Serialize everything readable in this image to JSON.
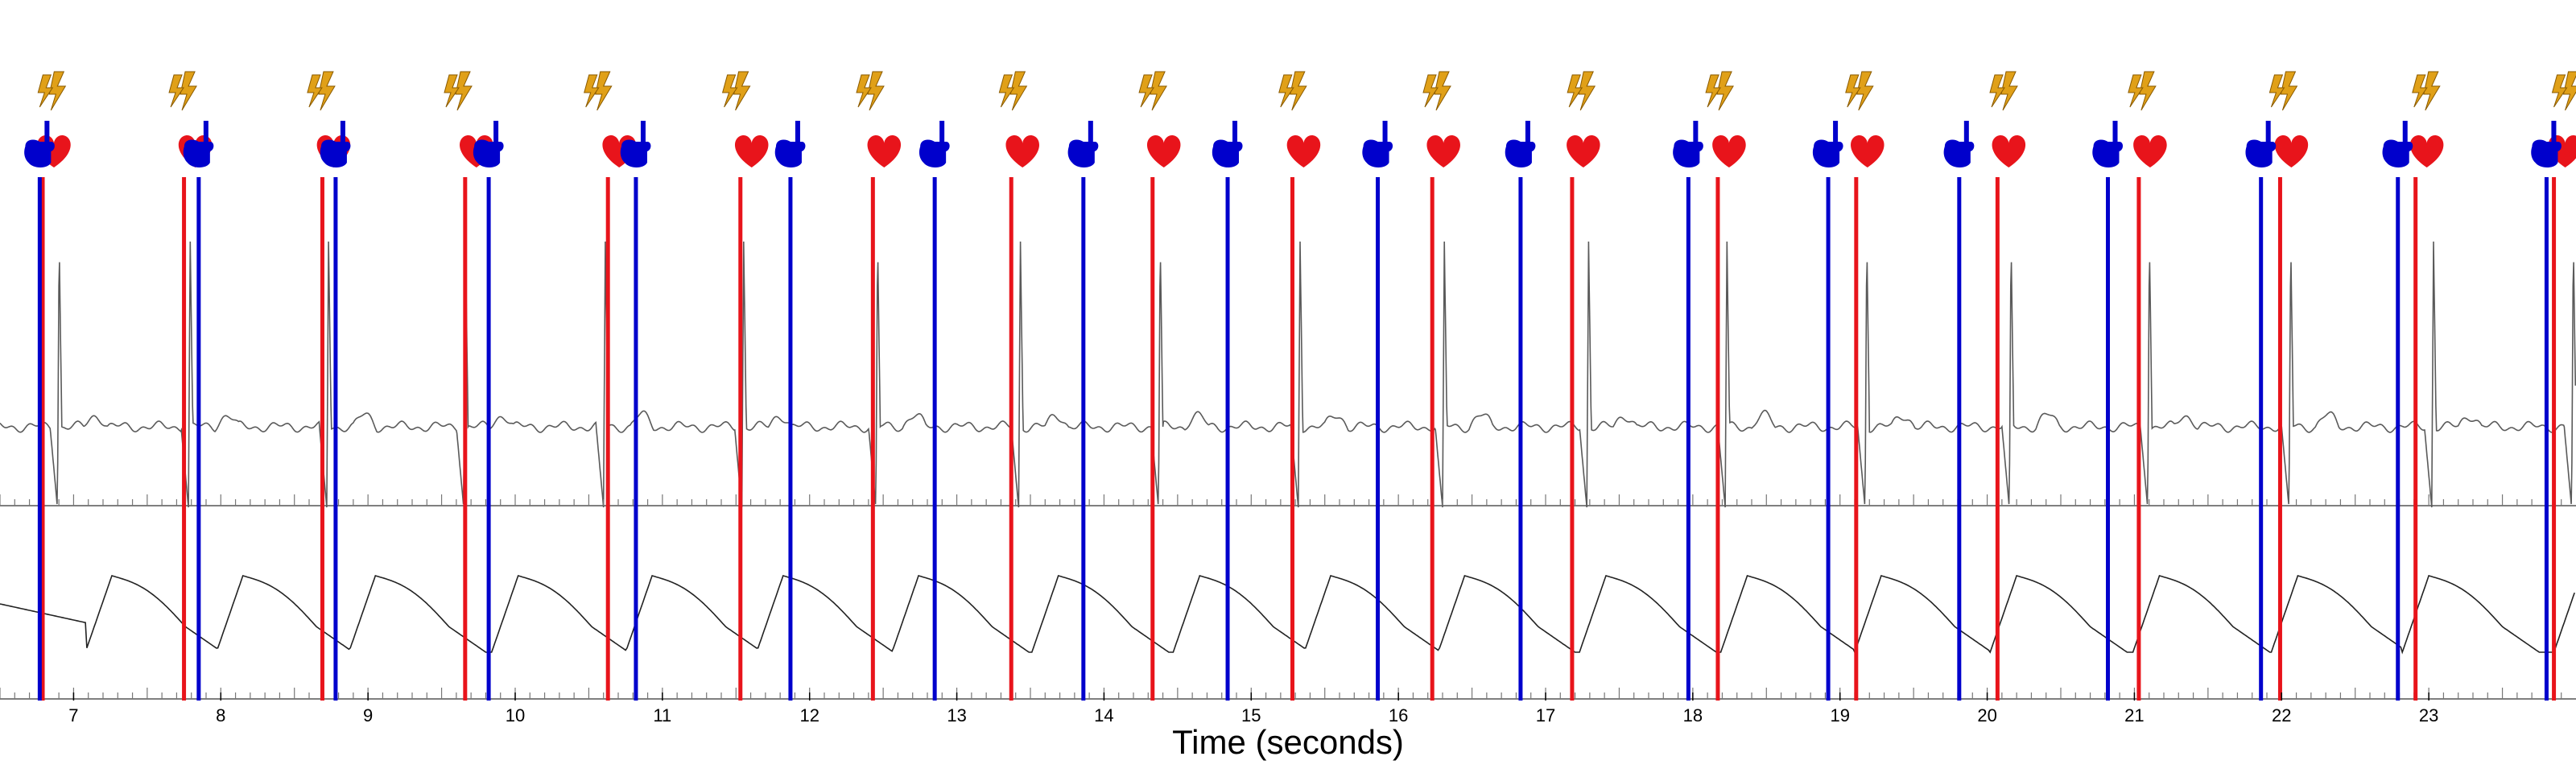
{
  "chart_data": {
    "type": "line",
    "title": "",
    "xlabel": "Time (seconds)",
    "ylabel": "",
    "xlim": [
      6.5,
      24.0
    ],
    "x_ticks": [
      "7",
      "8",
      "9",
      "10",
      "11",
      "12",
      "13",
      "14",
      "15",
      "16",
      "17",
      "18",
      "19",
      "20",
      "21",
      "22",
      "23"
    ],
    "grid": false,
    "legend": "none",
    "series": [
      {
        "values": [
          6.89,
          7.78,
          8.72,
          9.65,
          10.6,
          11.54,
          12.45,
          13.42,
          14.37,
          15.32,
          16.3,
          17.28,
          18.22,
          19.17,
          20.15,
          21.09,
          22.05,
          23.02,
          23.97
        ]
      },
      {
        "values": [
          6.79,
          7.75,
          8.69,
          9.66,
          10.63,
          11.53,
          12.43,
          13.37,
          14.33,
          15.28,
          16.23,
          17.18,
          18.17,
          19.11,
          20.07,
          21.03,
          21.99,
          22.91,
          23.85
        ]
      },
      {
        "values": [
          6.77,
          7.85,
          8.78,
          9.82,
          10.82,
          11.87,
          12.85,
          13.86,
          14.84,
          15.86,
          16.83,
          17.97,
          18.92,
          19.81,
          20.82,
          21.86,
          22.79,
          23.8
        ]
      },
      {
        "values": [
          7.08,
          7.97,
          8.87,
          9.84,
          10.75,
          11.64,
          12.56,
          13.51,
          14.47,
          15.36,
          16.27,
          17.23,
          18.19,
          19.1,
          20.02,
          20.99,
          21.93,
          22.82,
          23.85
        ]
      }
    ],
    "colors": {
      "blue_marker": "#0000cc",
      "red_marker": "#e8141b",
      "lightning": "#e0a018",
      "trace": "#5a5a5a"
    },
    "icons": {
      "blue_marker": "pointing-hand-icon",
      "red_marker": "heart-icon",
      "lightning_marker": "lightning-bolt-icon"
    }
  }
}
